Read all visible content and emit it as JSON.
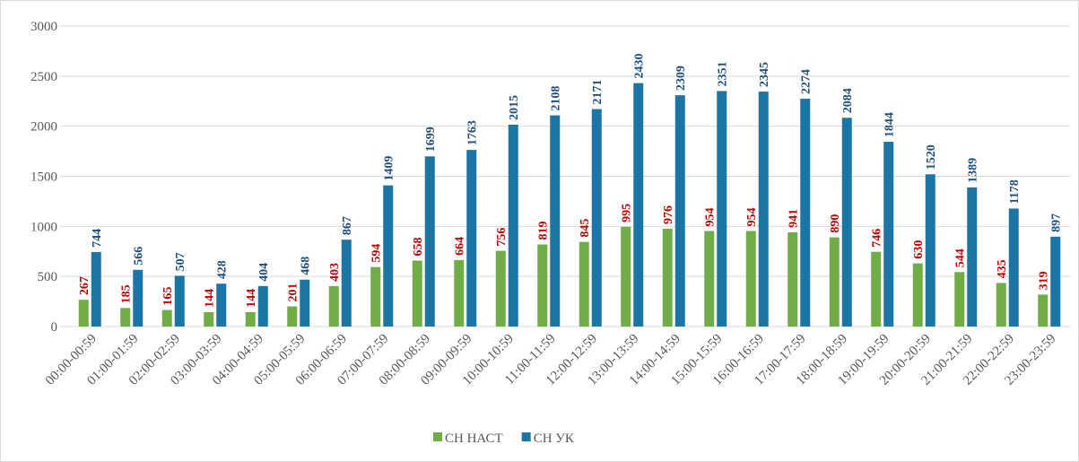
{
  "chart_data": {
    "type": "bar",
    "categories": [
      "00:00-00:59",
      "01:00-01:59",
      "02:00-02:59",
      "03:00-03:59",
      "04:00-04:59",
      "05:00-05:59",
      "06:00-06:59",
      "07:00-07:59",
      "08:00-08:59",
      "09:00-09:59",
      "10:00-10:59",
      "11:00-11:59",
      "12:00-12:59",
      "13:00-13:59",
      "14:00-14:59",
      "15:00-15:59",
      "16:00-16:59",
      "17:00-17:59",
      "18:00-18:59",
      "19:00-19:59",
      "20:00-20:59",
      "21:00-21:59",
      "22:00-22:59",
      "23:00-23:59"
    ],
    "series": [
      {
        "name": "СН НАСТ",
        "color": "#70ad47",
        "label_color": "#c00000",
        "values": [
          267,
          185,
          165,
          144,
          144,
          201,
          403,
          594,
          658,
          664,
          756,
          819,
          845,
          995,
          976,
          954,
          954,
          941,
          890,
          746,
          630,
          544,
          435,
          319
        ]
      },
      {
        "name": "СН УК",
        "color": "#1b75a5",
        "label_color": "#1f4e79",
        "values": [
          744,
          566,
          507,
          428,
          404,
          468,
          867,
          1409,
          1699,
          1763,
          2015,
          2108,
          2171,
          2430,
          2309,
          2351,
          2345,
          2274,
          2084,
          1844,
          1520,
          1389,
          1178,
          897
        ]
      }
    ],
    "ylim": [
      0,
      3000
    ],
    "yticks": [
      0,
      500,
      1000,
      1500,
      2000,
      2500,
      3000
    ],
    "grid": true,
    "legend": "bottom"
  }
}
